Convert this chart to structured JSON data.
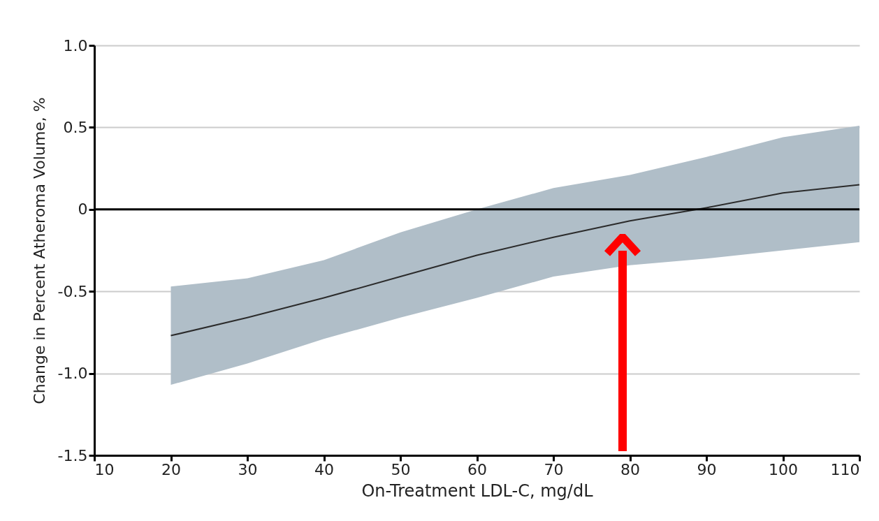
{
  "chart_data": {
    "type": "line",
    "xlabel": "On-Treatment LDL-C, mg/dL",
    "ylabel": "Change in Percent Atheroma Volume, %",
    "x": [
      20,
      30,
      40,
      50,
      60,
      70,
      80,
      90,
      100,
      110
    ],
    "series": [
      {
        "color": "#2b2b2b",
        "values": [
          -0.77,
          -0.66,
          -0.54,
          -0.41,
          -0.28,
          -0.17,
          -0.07,
          0.01,
          0.1,
          0.15
        ],
        "lower": [
          -1.07,
          -0.94,
          -0.79,
          -0.66,
          -0.54,
          -0.41,
          -0.34,
          -0.3,
          -0.25,
          -0.2
        ],
        "upper": [
          -0.47,
          -0.42,
          -0.31,
          -0.14,
          0.0,
          0.13,
          0.21,
          0.32,
          0.44,
          0.51
        ]
      }
    ],
    "xlim": [
      10,
      110
    ],
    "xticks": [
      10,
      20,
      30,
      40,
      50,
      60,
      70,
      80,
      90,
      100,
      110
    ],
    "ylim": [
      -1.5,
      1
    ],
    "yticks": [
      {
        "value": 1,
        "label": "1.0"
      },
      {
        "value": 0.5,
        "label": "0.5"
      },
      0,
      {
        "value": -0.5,
        "label": "-0.5"
      },
      {
        "value": -1,
        "label": "-1.0"
      },
      {
        "value": -1.5,
        "label": "-1.5"
      }
    ],
    "ref_lines": [
      {
        "axis": "y",
        "value": 0,
        "color": "#000000"
      }
    ],
    "grid": "y"
  }
}
